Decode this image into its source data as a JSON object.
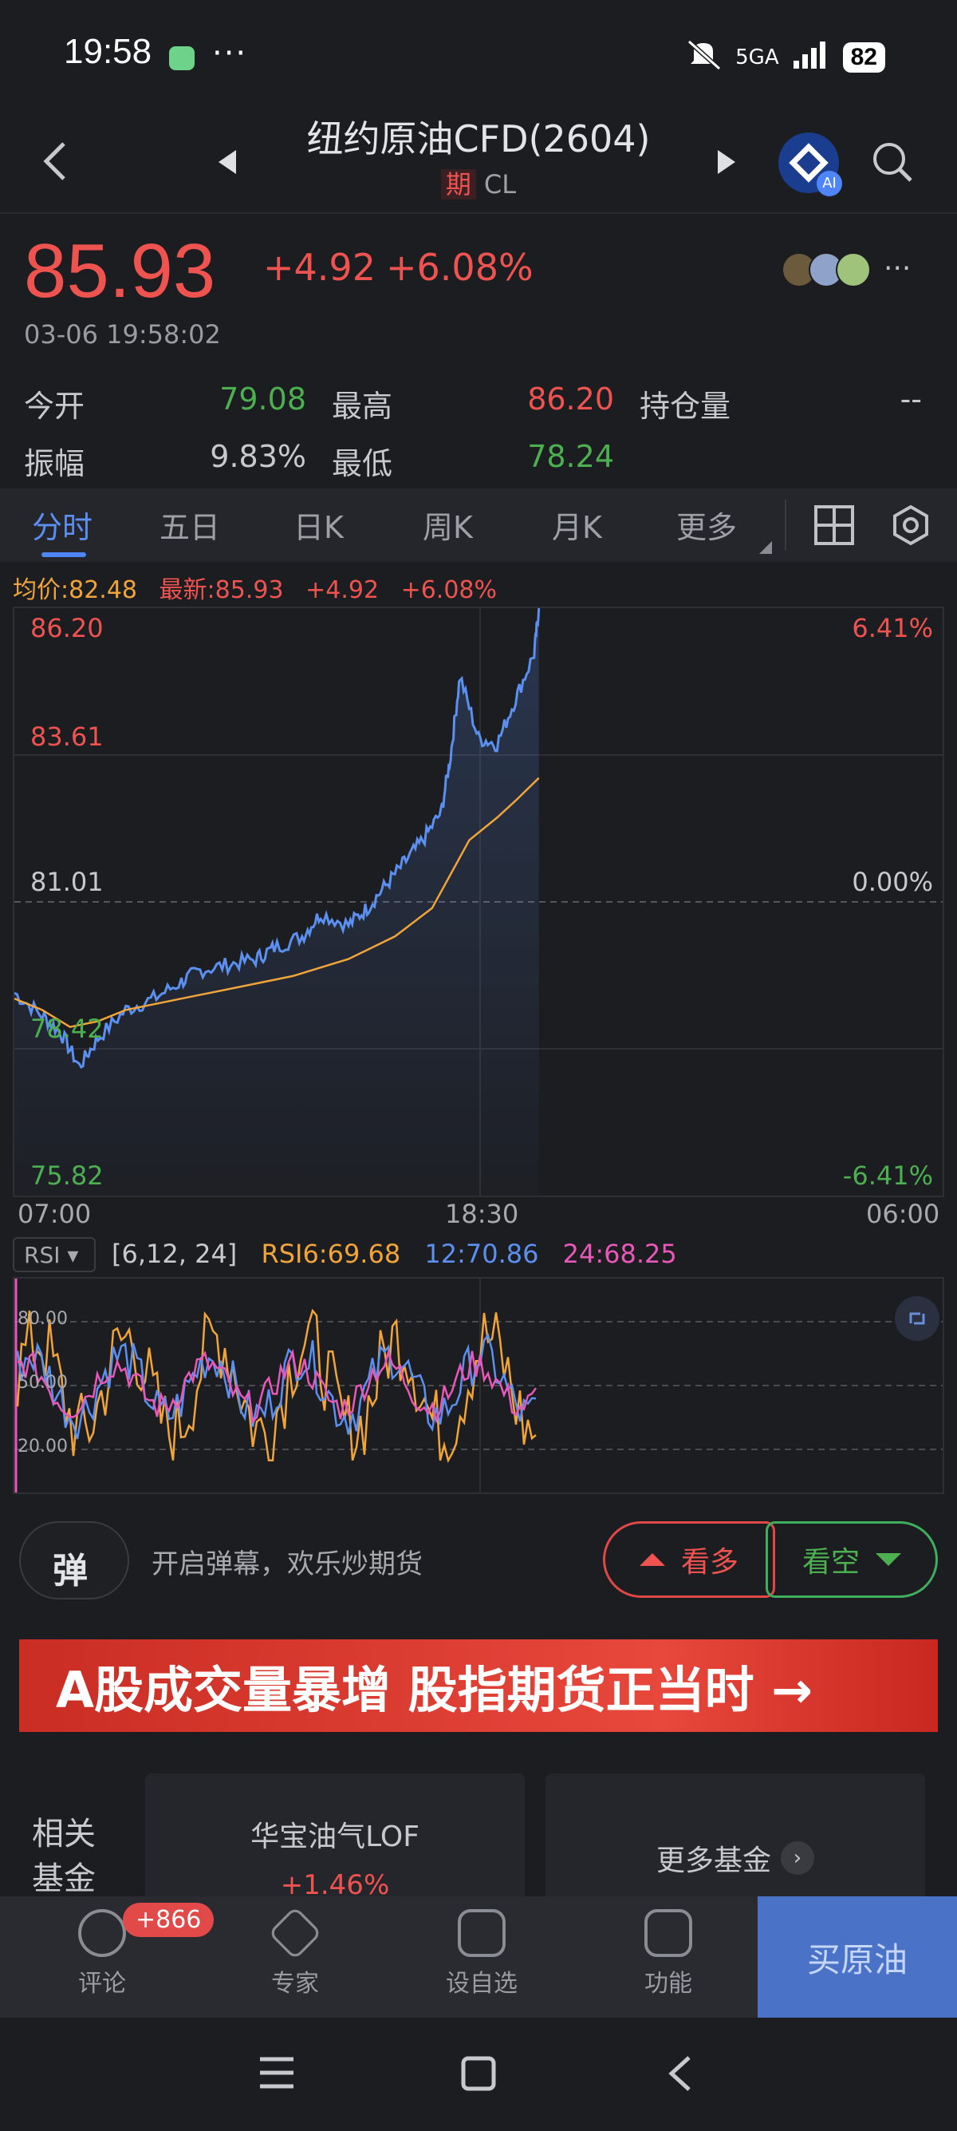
{
  "status_bar": {
    "time": "19:58",
    "dots": "···",
    "network": "5GA",
    "battery": "82"
  },
  "header": {
    "title": "纽约原油CFD(2604)",
    "badge": "期",
    "code": "CL"
  },
  "quote": {
    "price": "85.93",
    "change": "+4.92",
    "change_pct": "+6.08%",
    "timestamp": "03-06 19:58:02",
    "stats": {
      "open_label": "今开",
      "open": "79.08",
      "high_label": "最高",
      "high": "86.20",
      "oi_label": "持仓量",
      "oi": "--",
      "amp_label": "振幅",
      "amp": "9.83%",
      "low_label": "最低",
      "low": "78.24"
    }
  },
  "tabs": [
    "分时",
    "五日",
    "日K",
    "周K",
    "月K",
    "更多"
  ],
  "legend": {
    "avg": "均价:82.48",
    "latest": "最新:85.93",
    "chg": "+4.92",
    "pct": "+6.08%"
  },
  "chart_data": {
    "type": "line",
    "y_left_ticks": [
      "86.20",
      "83.61",
      "81.01",
      "78.42",
      "75.82"
    ],
    "y_right_ticks": [
      "6.41%",
      "",
      "0.00%",
      "",
      "-6.41%"
    ],
    "x_ticks": [
      "07:00",
      "18:30",
      "06:00"
    ],
    "ylim": [
      75.82,
      86.2
    ],
    "series": [
      {
        "name": "最新",
        "color": "#5b8ff0",
        "points": [
          [
            0,
            79.4
          ],
          [
            0.03,
            79.0
          ],
          [
            0.05,
            78.7
          ],
          [
            0.07,
            78.1
          ],
          [
            0.09,
            78.6
          ],
          [
            0.12,
            79.1
          ],
          [
            0.15,
            79.3
          ],
          [
            0.18,
            79.6
          ],
          [
            0.2,
            79.8
          ],
          [
            0.23,
            79.9
          ],
          [
            0.26,
            80.0
          ],
          [
            0.28,
            80.2
          ],
          [
            0.31,
            80.4
          ],
          [
            0.33,
            80.8
          ],
          [
            0.36,
            80.6
          ],
          [
            0.38,
            80.9
          ],
          [
            0.4,
            81.3
          ],
          [
            0.42,
            81.7
          ],
          [
            0.44,
            82.1
          ],
          [
            0.46,
            82.6
          ],
          [
            0.47,
            83.6
          ],
          [
            0.48,
            85.0
          ],
          [
            0.5,
            83.9
          ],
          [
            0.52,
            83.8
          ],
          [
            0.54,
            84.6
          ],
          [
            0.56,
            85.4
          ],
          [
            0.565,
            86.2
          ]
        ]
      },
      {
        "name": "均价",
        "color": "#f0a43a",
        "points": [
          [
            0,
            79.3
          ],
          [
            0.03,
            79.1
          ],
          [
            0.06,
            78.8
          ],
          [
            0.09,
            78.9
          ],
          [
            0.12,
            79.1
          ],
          [
            0.18,
            79.3
          ],
          [
            0.24,
            79.5
          ],
          [
            0.3,
            79.7
          ],
          [
            0.36,
            80.0
          ],
          [
            0.41,
            80.4
          ],
          [
            0.45,
            80.9
          ],
          [
            0.47,
            81.5
          ],
          [
            0.49,
            82.1
          ],
          [
            0.52,
            82.5
          ],
          [
            0.54,
            82.8
          ],
          [
            0.565,
            83.2
          ]
        ]
      }
    ]
  },
  "rsi": {
    "selector": "RSI",
    "params": "[6,12, 24]",
    "rsi6": "RSI6:69.68",
    "rsi12": "12:70.86",
    "rsi24": "24:68.25",
    "levels": [
      "80.00",
      "50.00",
      "20.00"
    ],
    "colors": {
      "rsi6": "#f0a43a",
      "rsi12": "#5b8ff0",
      "rsi24": "#e858b8"
    }
  },
  "danmaku": {
    "icon_char": "弹",
    "text": "开启弹幕，欢乐炒期货",
    "bull": "看多",
    "bear": "看空"
  },
  "banner": {
    "text": "A股成交量暴增 股指期货正当时 →"
  },
  "funds": {
    "label": "相关基金",
    "name": "华宝油气LOF",
    "pct": "+1.46%",
    "more": "更多基金"
  },
  "bottom_nav": {
    "items": [
      "评论",
      "专家",
      "设自选",
      "功能"
    ],
    "badge": "+866",
    "buy": "买原油"
  }
}
